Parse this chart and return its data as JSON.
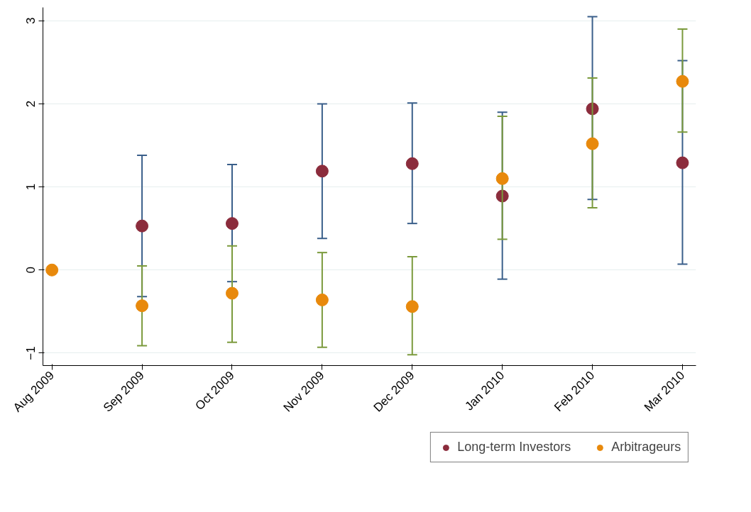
{
  "chart_data": {
    "type": "scatter",
    "categories": [
      "Aug 2009",
      "Sep 2009",
      "Oct 2009",
      "Nov 2009",
      "Dec 2009",
      "Jan 2010",
      "Feb 2010",
      "Mar 2010"
    ],
    "series": [
      {
        "name": "Long-term Investors",
        "color": "#8b2c3c",
        "values": [
          null,
          0.53,
          0.56,
          1.19,
          1.28,
          0.89,
          1.94,
          1.29
        ],
        "errors": [
          null,
          [
            -0.32,
            1.38
          ],
          [
            -0.14,
            1.27
          ],
          [
            0.38,
            2.0
          ],
          [
            0.56,
            2.01
          ],
          [
            -0.11,
            1.9
          ],
          [
            0.85,
            3.05
          ],
          [
            0.07,
            2.52
          ]
        ]
      },
      {
        "name": "Arbitrageurs",
        "color": "#e8890c",
        "values": [
          0,
          -0.43,
          -0.28,
          -0.36,
          -0.44,
          1.1,
          1.52,
          2.27
        ],
        "errors": [
          null,
          [
            -0.91,
            0.05
          ],
          [
            -0.87,
            0.29
          ],
          [
            -0.93,
            0.21
          ],
          [
            -1.02,
            0.16
          ],
          [
            0.37,
            1.85
          ],
          [
            0.75,
            2.31
          ],
          [
            1.66,
            2.9
          ]
        ]
      }
    ],
    "ylim": [
      -1.15,
      3.16
    ],
    "yticks": [
      -1,
      0,
      1,
      2,
      3
    ],
    "grid": "y",
    "legend": "bottom",
    "marker": "circle"
  }
}
